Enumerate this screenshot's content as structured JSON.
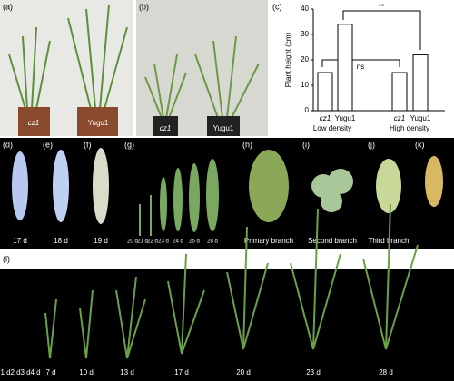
{
  "panels": {
    "a": {
      "label": "(a)",
      "texts": [
        "cz1",
        "Yugu1"
      ]
    },
    "b": {
      "label": "(b)",
      "texts": [
        "cz1",
        "Yugu1"
      ]
    },
    "c": {
      "label": "(c)"
    },
    "d": {
      "label": "(d)",
      "texts": [
        "17 d"
      ]
    },
    "e": {
      "label": "(e)",
      "texts": [
        "18 d"
      ]
    },
    "f": {
      "label": "(f)",
      "texts": [
        "19 d"
      ]
    },
    "g": {
      "label": "(g)",
      "texts": [
        "20 d",
        "21 d",
        "22 d",
        "23 d",
        "24 d",
        "25 d",
        "28 d"
      ]
    },
    "h": {
      "label": "(h)",
      "texts": [
        "Primary branch"
      ]
    },
    "i": {
      "label": "(i)",
      "texts": [
        "Second branch"
      ]
    },
    "j": {
      "label": "(j)",
      "texts": [
        "Third branch"
      ]
    },
    "k": {
      "label": "(k)"
    },
    "l": {
      "label": "(l)",
      "texts": [
        "1 d",
        "2 d",
        "3 d",
        "4 d",
        "7 d",
        "10 d",
        "13 d",
        "17 d",
        "20 d",
        "23 d",
        "28 d"
      ]
    }
  },
  "chart_data": {
    "type": "bar",
    "y_label": "Plant height (cm)",
    "categories": [
      "cz1",
      "Yugu1",
      "cz1",
      "Yugu1"
    ],
    "values": [
      15,
      34,
      15,
      22
    ],
    "group_labels": [
      "Low density",
      "High density"
    ],
    "annotations": [
      "ns",
      "**"
    ],
    "color": "#ffffff",
    "ylim": [
      0,
      40
    ],
    "yticks": [
      0,
      10,
      20,
      30,
      40
    ]
  }
}
